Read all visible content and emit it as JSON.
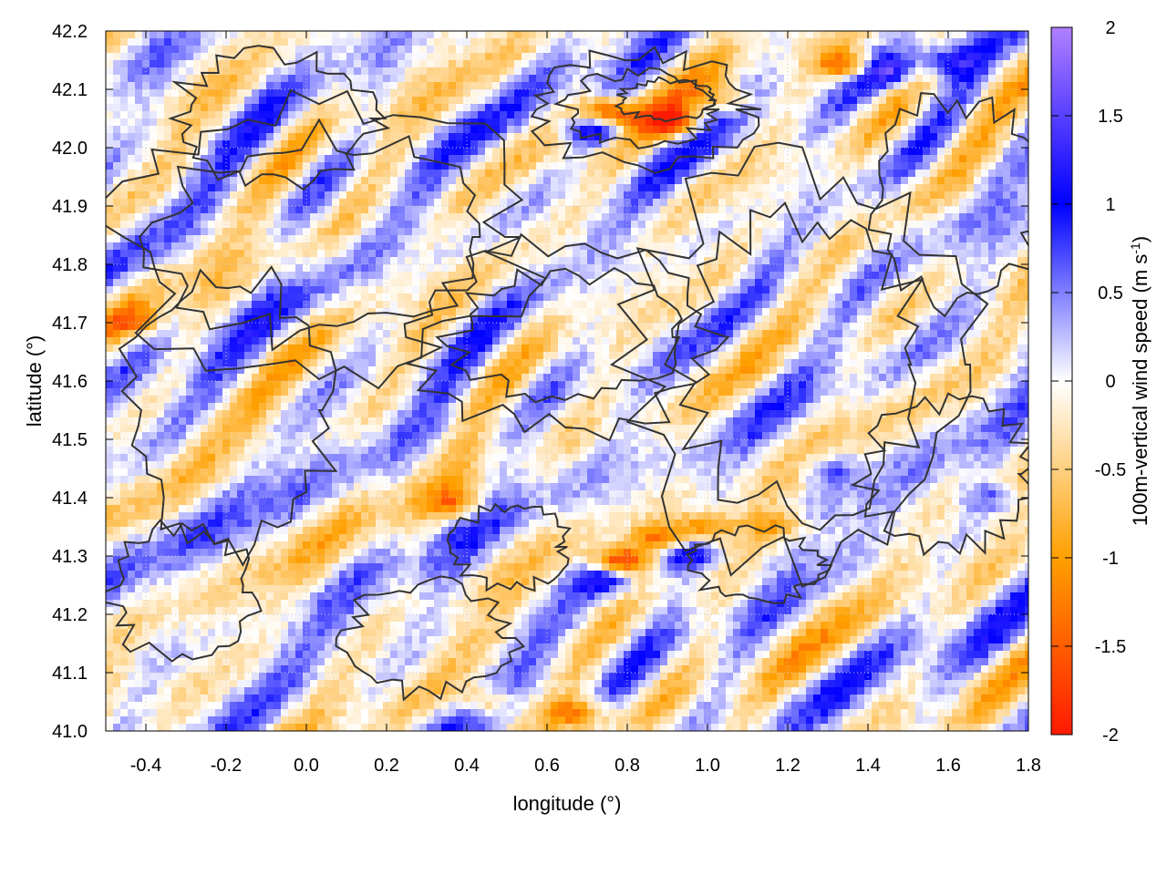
{
  "chart_data": {
    "type": "heatmap",
    "title": "",
    "xlabel": "longitude (°)",
    "ylabel": "latitude (°)",
    "colorbar_label": "100m-vertical wind speed (m s-1)",
    "colorbar_label_main": "100m-vertical wind speed (m s",
    "colorbar_label_sup": "-1",
    "colorbar_label_end": ")",
    "xlim": [
      -0.5,
      1.8
    ],
    "ylim": [
      41.0,
      42.2
    ],
    "clim": [
      -2,
      2
    ],
    "x_ticks": [
      -0.4,
      -0.2,
      0.0,
      0.2,
      0.4,
      0.6,
      0.8,
      1.0,
      1.2,
      1.4,
      1.6,
      1.8
    ],
    "x_tick_labels": [
      "-0.4",
      "-0.2",
      "0.0",
      "0.2",
      "0.4",
      "0.6",
      "0.8",
      "1.0",
      "1.2",
      "1.4",
      "1.6",
      "1.8"
    ],
    "y_ticks": [
      41.0,
      41.1,
      41.2,
      41.3,
      41.4,
      41.5,
      41.6,
      41.7,
      41.8,
      41.9,
      42.0,
      42.1,
      42.2
    ],
    "y_tick_labels": [
      "41.0",
      "41.1",
      "41.2",
      "41.3",
      "41.4",
      "41.5",
      "41.6",
      "41.7",
      "41.8",
      "41.9",
      "42.0",
      "42.1",
      "42.2"
    ],
    "colorbar_ticks": [
      2,
      1.5,
      1,
      0.5,
      0,
      -0.5,
      -1,
      -1.5,
      -2
    ],
    "colorbar_tick_labels": [
      "2",
      "1.5",
      "1",
      "0.5",
      "0",
      "-0.5",
      "-1",
      "-1.5",
      "-2"
    ],
    "colormap": [
      {
        "value": -2,
        "color": "#ff1a00"
      },
      {
        "value": -1,
        "color": "#ffa000"
      },
      {
        "value": 0,
        "color": "#ffffff"
      },
      {
        "value": 1,
        "color": "#0000ff"
      },
      {
        "value": 2,
        "color": "#b080ff"
      }
    ],
    "grid": true,
    "contour_color": "#333333",
    "features": [
      {
        "lon": 0.78,
        "lat": 41.29,
        "value": -2.0
      },
      {
        "lon": 0.88,
        "lat": 41.33,
        "value": -1.2
      },
      {
        "lon": 1.0,
        "lat": 41.35,
        "value": -1.3
      },
      {
        "lon": 0.75,
        "lat": 41.26,
        "value": 1.2
      },
      {
        "lon": 0.95,
        "lat": 41.3,
        "value": 1.1
      },
      {
        "lon": 0.75,
        "lat": 42.06,
        "value": -1.9
      },
      {
        "lon": 0.92,
        "lat": 42.04,
        "value": -1.5
      },
      {
        "lon": 0.72,
        "lat": 42.03,
        "value": 1.6
      },
      {
        "lon": 1.05,
        "lat": 42.08,
        "value": -1.0
      },
      {
        "lon": 1.35,
        "lat": 42.14,
        "value": -1.5
      },
      {
        "lon": 1.45,
        "lat": 42.13,
        "value": 1.3
      },
      {
        "lon": 1.6,
        "lat": 42.15,
        "value": 1.0
      },
      {
        "lon": -0.42,
        "lat": 41.7,
        "value": -0.8
      },
      {
        "lon": 0.45,
        "lat": 41.05,
        "value": -1.1
      },
      {
        "lon": 0.68,
        "lat": 41.03,
        "value": -1.3
      },
      {
        "lon": 0.38,
        "lat": 41.39,
        "value": -1.0
      },
      {
        "lon": 1.18,
        "lat": 41.35,
        "value": -0.9
      },
      {
        "lon": 1.3,
        "lat": 41.45,
        "value": 0.8
      },
      {
        "lon": 1.7,
        "lat": 41.4,
        "value": 0.7
      }
    ]
  }
}
